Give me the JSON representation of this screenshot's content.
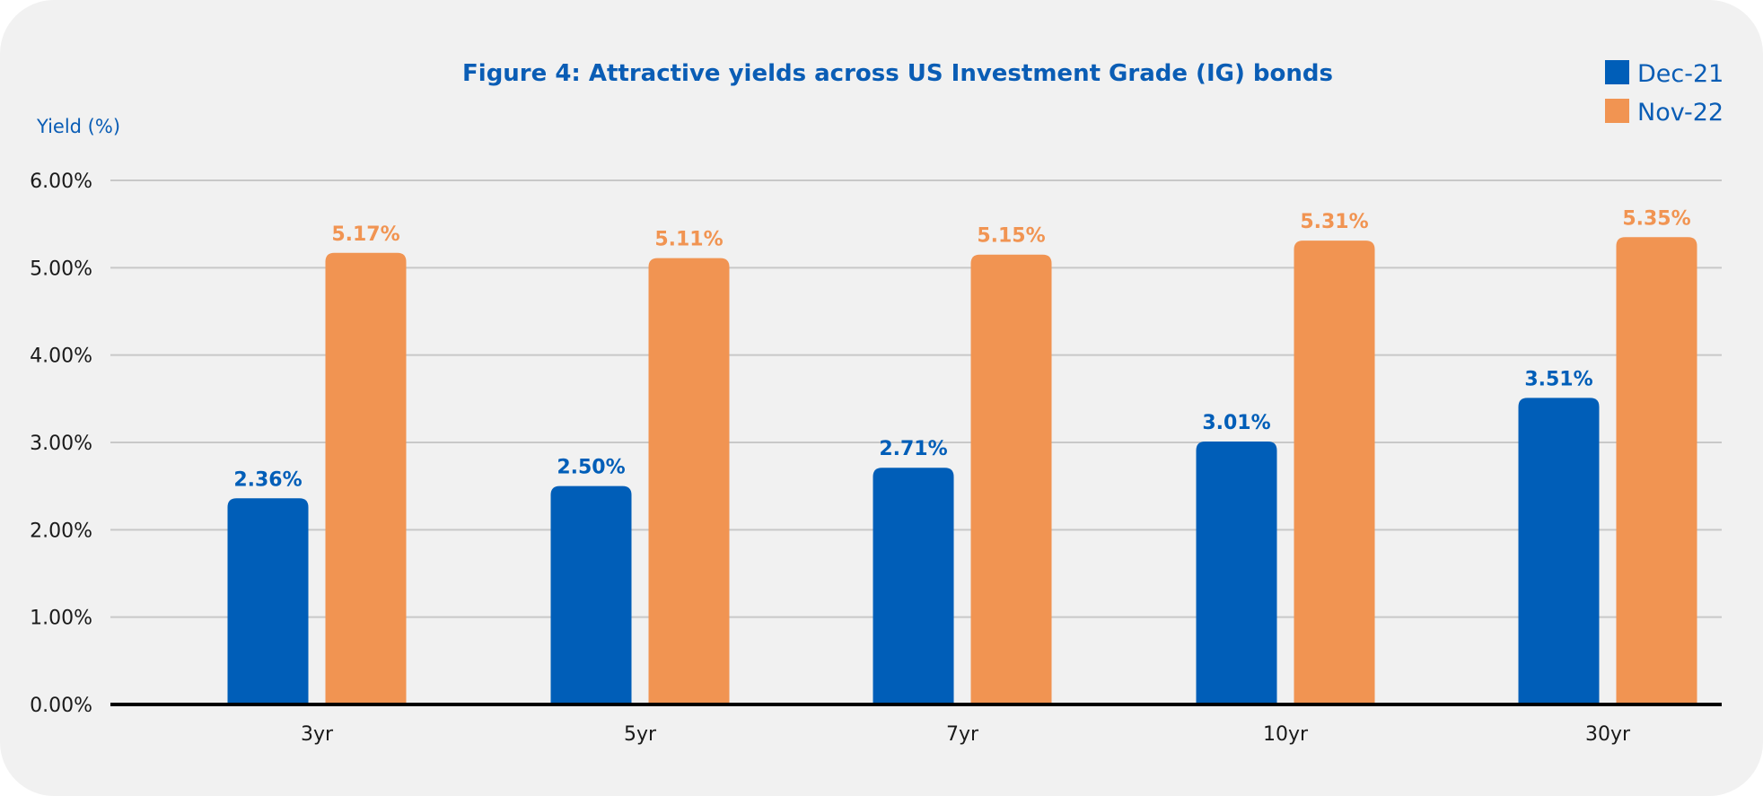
{
  "colors": {
    "background": "#f1f1f1",
    "series_dec21": "#005eb8",
    "series_nov22": "#f19452",
    "title": "#0a5db5",
    "gridline": "#c8c8c8",
    "axis": "#000000",
    "tick_text": "#1a1a1a"
  },
  "chart_data": {
    "type": "bar",
    "title": "Figure 4: Attractive yields across US Investment Grade (IG) bonds",
    "xlabel": "",
    "ylabel": "Yield (%)",
    "ylim": [
      0,
      6
    ],
    "yticks": [
      0,
      1,
      2,
      3,
      4,
      5,
      6
    ],
    "ytick_labels": [
      "0.00%",
      "1.00%",
      "2.00%",
      "3.00%",
      "4.00%",
      "5.00%",
      "6.00%"
    ],
    "grid": true,
    "legend_position": "top-right",
    "categories": [
      "3yr",
      "5yr",
      "7yr",
      "10yr",
      "30yr"
    ],
    "series": [
      {
        "name": "Dec-21",
        "color": "#005eb8",
        "values": [
          2.36,
          2.5,
          2.71,
          3.01,
          3.51
        ],
        "labels": [
          "2.36%",
          "2.50%",
          "2.71%",
          "3.01%",
          "3.51%"
        ]
      },
      {
        "name": "Nov-22",
        "color": "#f19452",
        "values": [
          5.17,
          5.11,
          5.15,
          5.31,
          5.35
        ],
        "labels": [
          "5.17%",
          "5.11%",
          "5.15%",
          "5.31%",
          "5.35%"
        ]
      }
    ]
  }
}
